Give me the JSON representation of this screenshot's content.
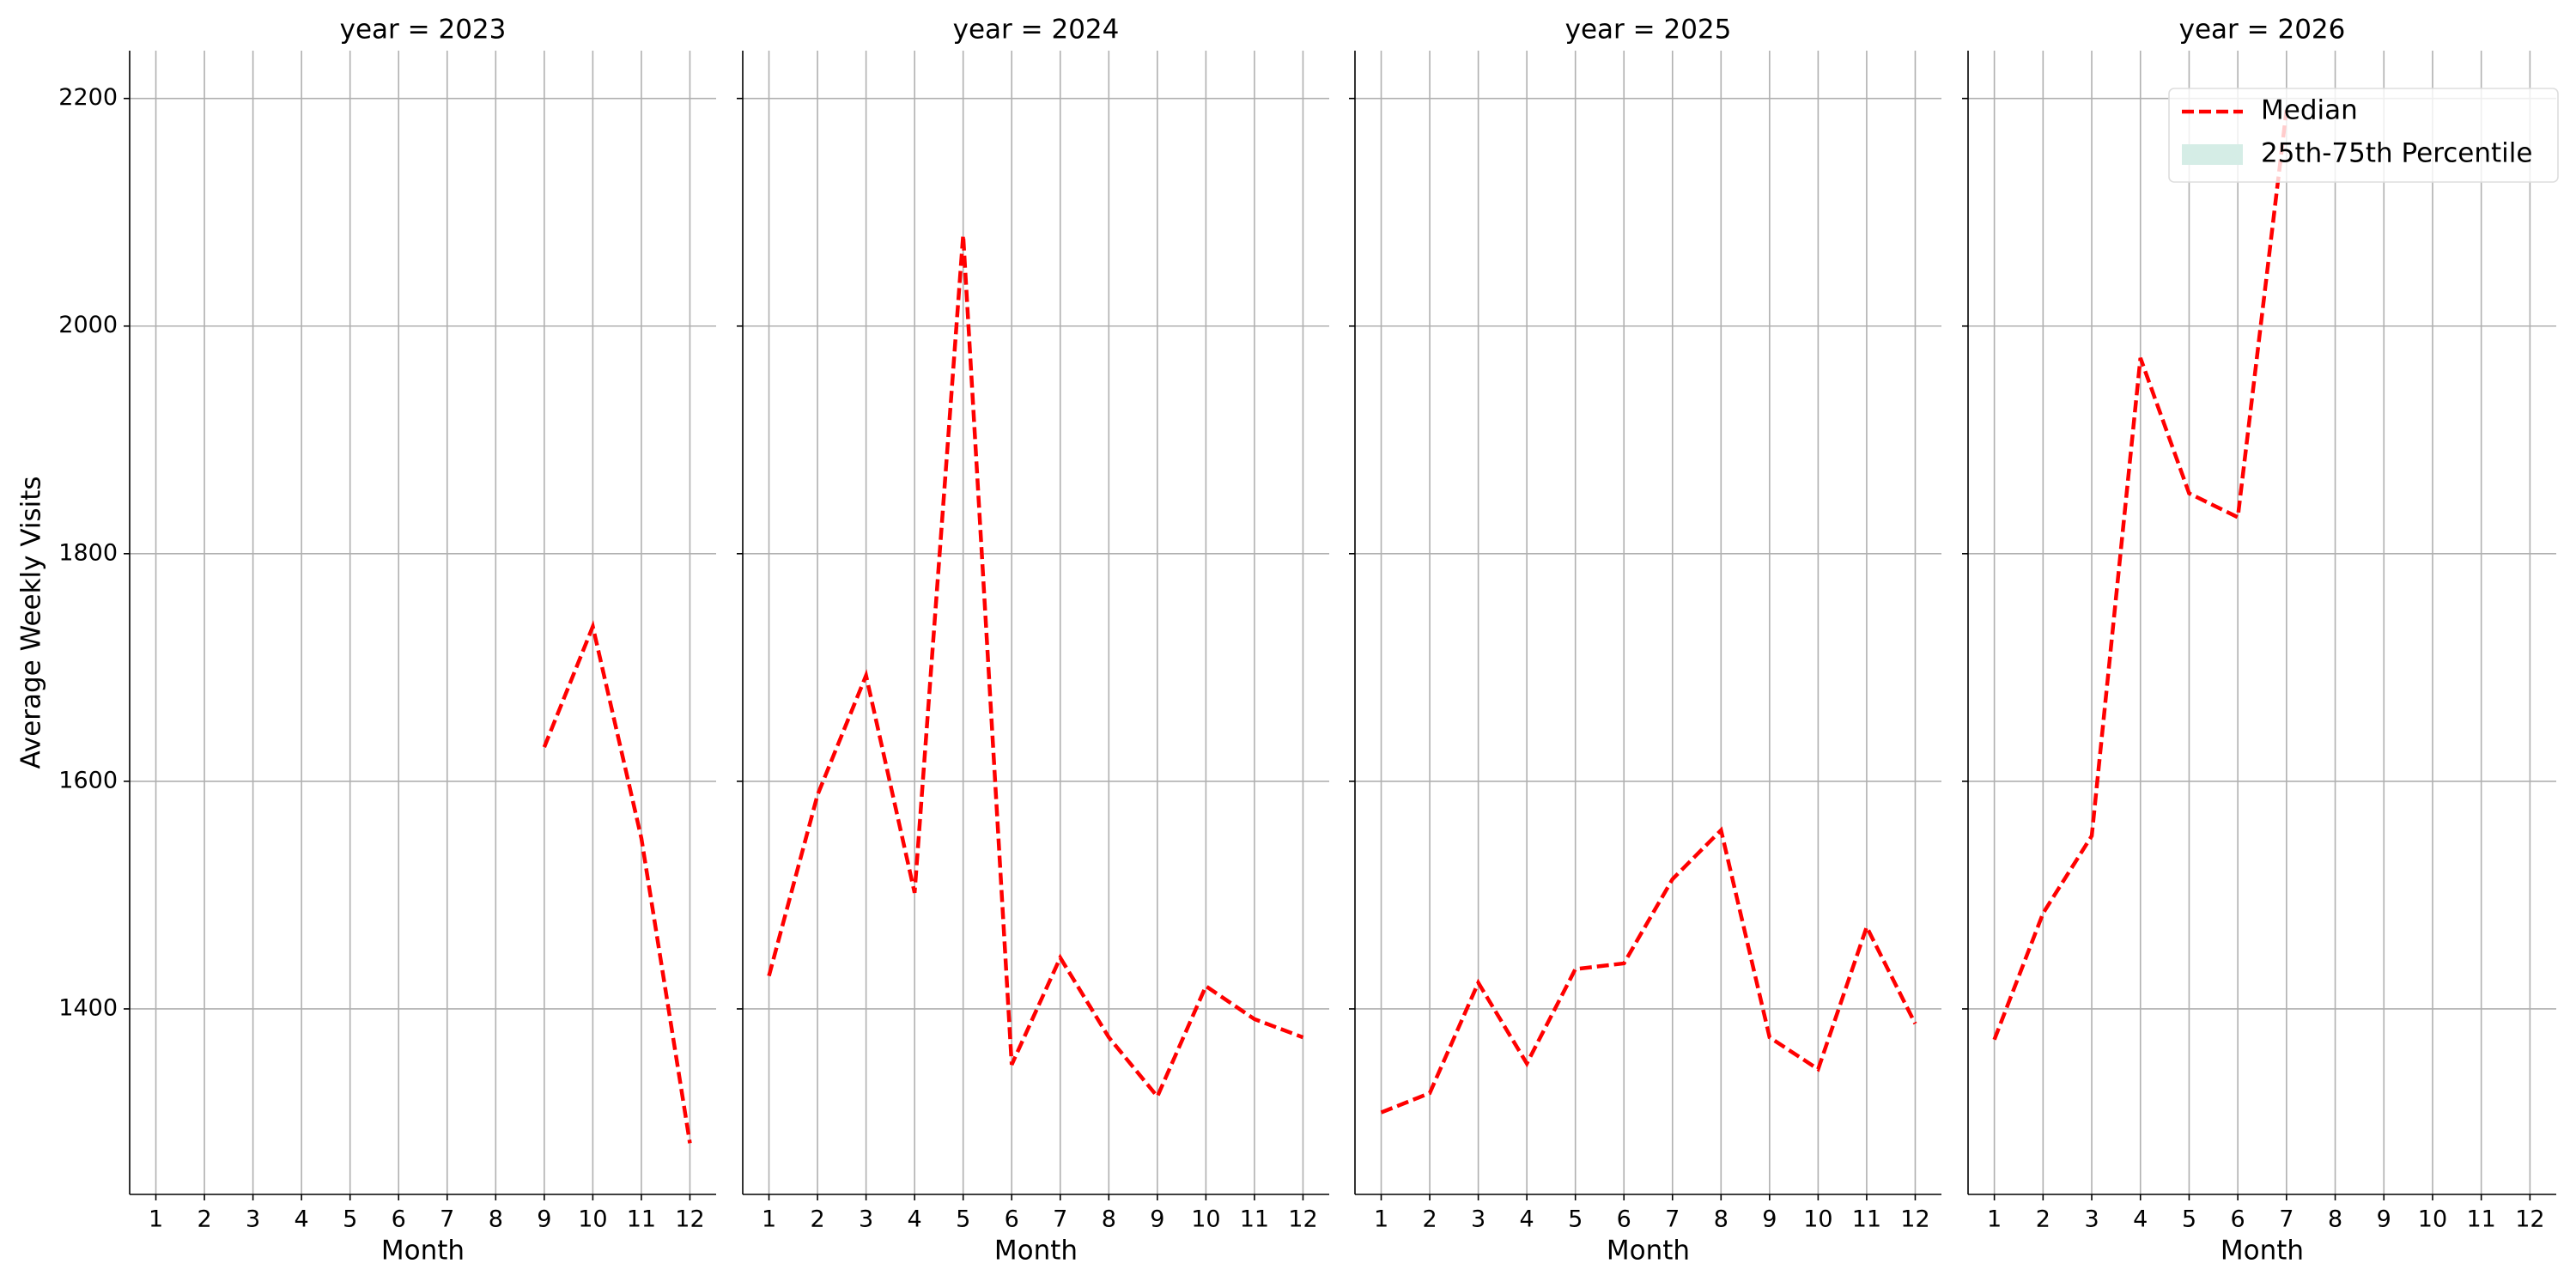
{
  "chart_data": [
    {
      "type": "line",
      "title": "year = 2023",
      "xlabel": "Month",
      "ylabel": "Average Weekly Visits",
      "show_ytick_labels": true,
      "x": [
        1,
        2,
        3,
        4,
        5,
        6,
        7,
        8,
        9,
        10,
        11,
        12
      ],
      "series": [
        {
          "name": "Median",
          "color": "#ff0000",
          "style": "dashed",
          "values": [
            null,
            null,
            null,
            null,
            null,
            null,
            null,
            null,
            1630,
            1736,
            1550,
            1282
          ]
        }
      ],
      "xlim": [
        0.46,
        12.54
      ],
      "xticks": [
        1,
        2,
        3,
        4,
        5,
        6,
        7,
        8,
        9,
        10,
        11,
        12
      ],
      "ylim": [
        1237,
        2242
      ],
      "yticks": [
        1400,
        1600,
        1800,
        2000,
        2200
      ],
      "grid": true
    },
    {
      "type": "line",
      "title": "year = 2024",
      "xlabel": "Month",
      "show_ytick_labels": false,
      "x": [
        1,
        2,
        3,
        4,
        5,
        6,
        7,
        8,
        9,
        10,
        11,
        12
      ],
      "series": [
        {
          "name": "Median",
          "color": "#ff0000",
          "style": "dashed",
          "values": [
            1429,
            1588,
            1693,
            1502,
            2080,
            1351,
            1445,
            1375,
            1323,
            1420,
            1391,
            1375
          ]
        }
      ],
      "xlim": [
        0.46,
        12.54
      ],
      "xticks": [
        1,
        2,
        3,
        4,
        5,
        6,
        7,
        8,
        9,
        10,
        11,
        12
      ],
      "ylim": [
        1237,
        2242
      ],
      "yticks": [
        1400,
        1600,
        1800,
        2000,
        2200
      ],
      "grid": true
    },
    {
      "type": "line",
      "title": "year = 2025",
      "xlabel": "Month",
      "show_ytick_labels": false,
      "x": [
        1,
        2,
        3,
        4,
        5,
        6,
        7,
        8,
        9,
        10,
        11,
        12
      ],
      "series": [
        {
          "name": "Median",
          "color": "#ff0000",
          "style": "dashed",
          "values": [
            1309,
            1326,
            1423,
            1352,
            1435,
            1440,
            1514,
            1557,
            1375,
            1347,
            1472,
            1387
          ]
        }
      ],
      "xlim": [
        0.46,
        12.54
      ],
      "xticks": [
        1,
        2,
        3,
        4,
        5,
        6,
        7,
        8,
        9,
        10,
        11,
        12
      ],
      "ylim": [
        1237,
        2242
      ],
      "yticks": [
        1400,
        1600,
        1800,
        2000,
        2200
      ],
      "grid": true
    },
    {
      "type": "line",
      "title": "year = 2026",
      "xlabel": "Month",
      "show_ytick_labels": false,
      "x": [
        1,
        2,
        3,
        4,
        5,
        6,
        7,
        8,
        9,
        10,
        11,
        12
      ],
      "series": [
        {
          "name": "Median",
          "color": "#ff0000",
          "style": "dashed",
          "values": [
            1373,
            1484,
            1552,
            1972,
            1853,
            1832,
            2190,
            null,
            null,
            null,
            null,
            null
          ]
        }
      ],
      "xlim": [
        0.46,
        12.54
      ],
      "xticks": [
        1,
        2,
        3,
        4,
        5,
        6,
        7,
        8,
        9,
        10,
        11,
        12
      ],
      "ylim": [
        1237,
        2242
      ],
      "yticks": [
        1400,
        1600,
        1800,
        2000,
        2200
      ],
      "grid": true,
      "legend": [
        {
          "name": "Median",
          "color": "#ff0000",
          "style": "dashed"
        },
        {
          "name": "25th-75th Percentile",
          "color": "#d5ede6",
          "style": "patch"
        }
      ],
      "legend_position": "upper right"
    }
  ]
}
